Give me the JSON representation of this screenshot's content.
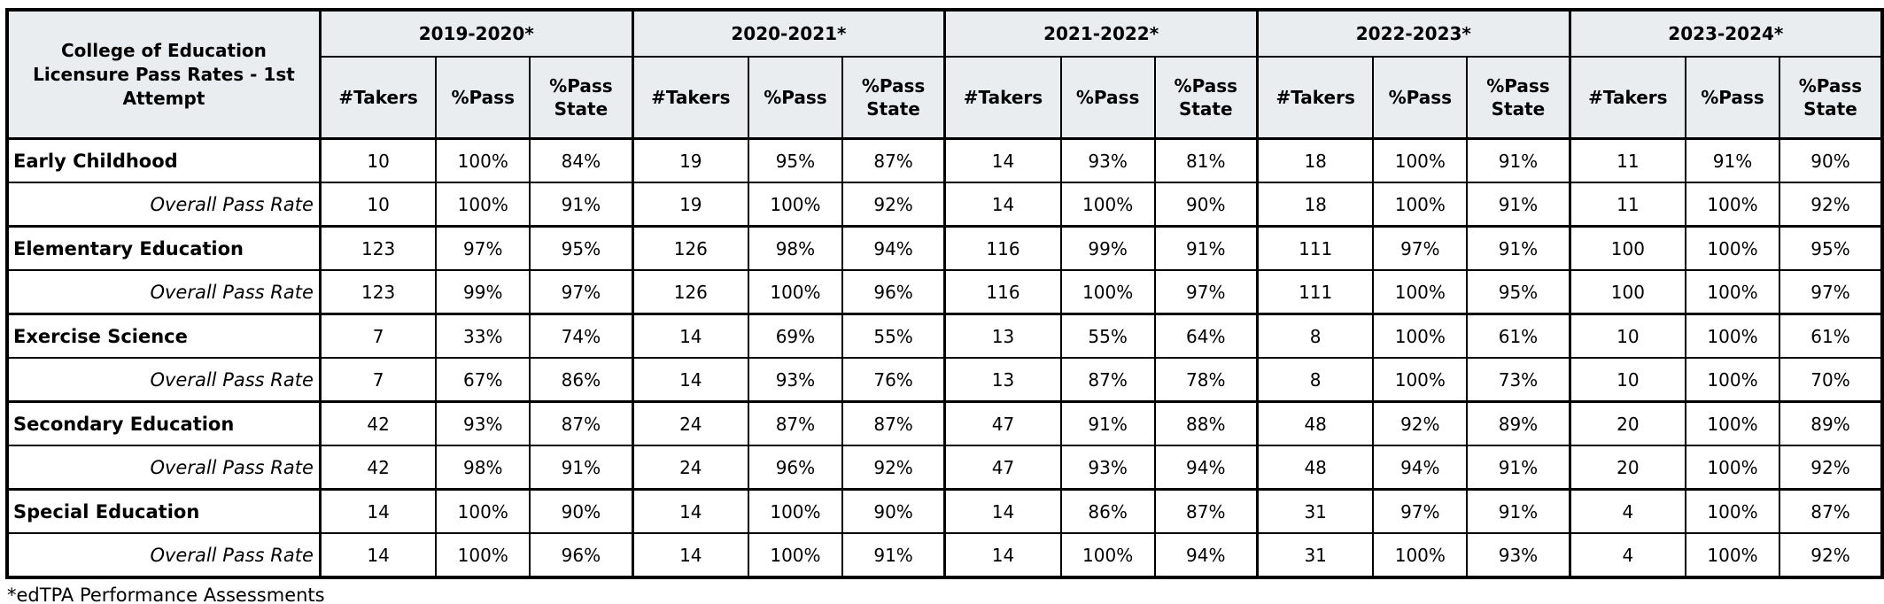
{
  "colors": {
    "header_bg": "#e9edef",
    "border": "#000000",
    "row_bg": "#ffffff",
    "text": "#000000"
  },
  "chart_data": {
    "type": "table",
    "title": "College of Education Licensure Pass Rates - 1st Attempt",
    "column_groups": [
      "2019-2020*",
      "2020-2021*",
      "2021-2022*",
      "2022-2023*",
      "2023-2024*"
    ],
    "sub_columns": [
      "#Takers",
      "%Pass",
      "%Pass State"
    ],
    "rows": [
      {
        "label": "Early Childhood",
        "type": "program",
        "values": [
          "10",
          "100%",
          "84%",
          "19",
          "95%",
          "87%",
          "14",
          "93%",
          "81%",
          "18",
          "100%",
          "91%",
          "11",
          "91%",
          "90%"
        ]
      },
      {
        "label": "Overall Pass Rate",
        "type": "overall",
        "values": [
          "10",
          "100%",
          "91%",
          "19",
          "100%",
          "92%",
          "14",
          "100%",
          "90%",
          "18",
          "100%",
          "91%",
          "11",
          "100%",
          "92%"
        ]
      },
      {
        "label": "Elementary Education",
        "type": "program",
        "values": [
          "123",
          "97%",
          "95%",
          "126",
          "98%",
          "94%",
          "116",
          "99%",
          "91%",
          "111",
          "97%",
          "91%",
          "100",
          "100%",
          "95%"
        ]
      },
      {
        "label": "Overall Pass Rate",
        "type": "overall",
        "values": [
          "123",
          "99%",
          "97%",
          "126",
          "100%",
          "96%",
          "116",
          "100%",
          "97%",
          "111",
          "100%",
          "95%",
          "100",
          "100%",
          "97%"
        ]
      },
      {
        "label": "Exercise Science",
        "type": "program",
        "values": [
          "7",
          "33%",
          "74%",
          "14",
          "69%",
          "55%",
          "13",
          "55%",
          "64%",
          "8",
          "100%",
          "61%",
          "10",
          "100%",
          "61%"
        ]
      },
      {
        "label": "Overall Pass Rate",
        "type": "overall",
        "values": [
          "7",
          "67%",
          "86%",
          "14",
          "93%",
          "76%",
          "13",
          "87%",
          "78%",
          "8",
          "100%",
          "73%",
          "10",
          "100%",
          "70%"
        ]
      },
      {
        "label": "Secondary Education",
        "type": "program",
        "values": [
          "42",
          "93%",
          "87%",
          "24",
          "87%",
          "87%",
          "47",
          "91%",
          "88%",
          "48",
          "92%",
          "89%",
          "20",
          "100%",
          "89%"
        ]
      },
      {
        "label": "Overall Pass Rate",
        "type": "overall",
        "values": [
          "42",
          "98%",
          "91%",
          "24",
          "96%",
          "92%",
          "47",
          "93%",
          "94%",
          "48",
          "94%",
          "91%",
          "20",
          "100%",
          "92%"
        ]
      },
      {
        "label": "Special Education",
        "type": "program",
        "values": [
          "14",
          "100%",
          "90%",
          "14",
          "100%",
          "90%",
          "14",
          "86%",
          "87%",
          "31",
          "97%",
          "91%",
          "4",
          "100%",
          "87%"
        ]
      },
      {
        "label": "Overall Pass Rate",
        "type": "overall",
        "values": [
          "14",
          "100%",
          "96%",
          "14",
          "100%",
          "91%",
          "14",
          "100%",
          "94%",
          "31",
          "100%",
          "93%",
          "4",
          "100%",
          "92%"
        ]
      }
    ],
    "footnote": "*edTPA Performance Assessments"
  }
}
